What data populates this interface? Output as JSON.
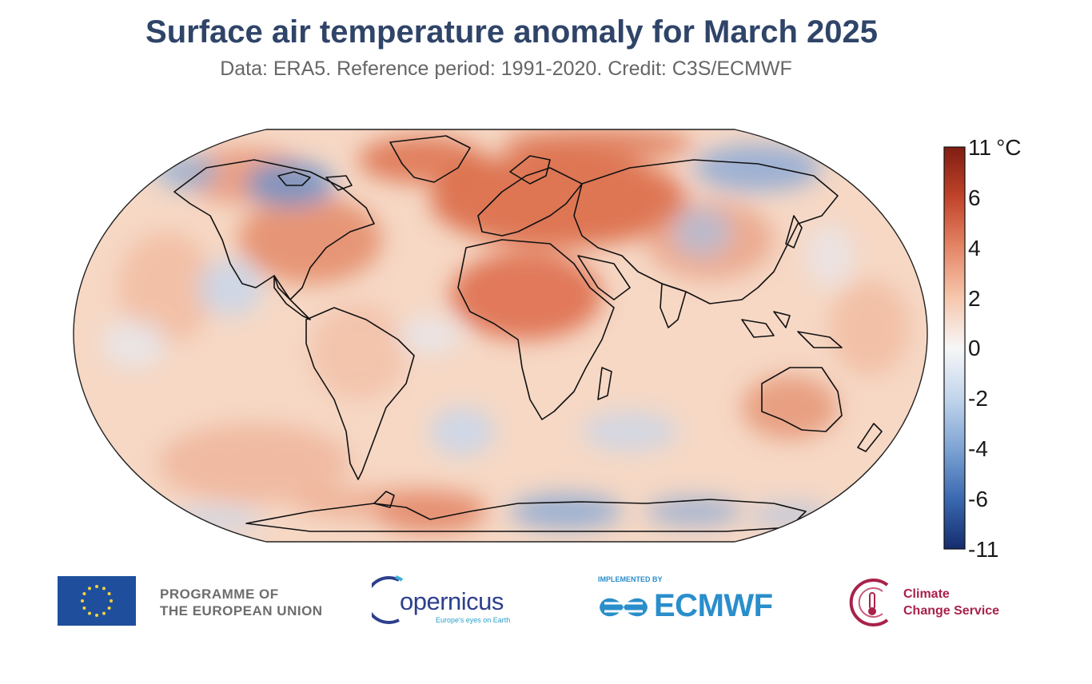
{
  "header": {
    "title": "Surface air temperature anomaly for March 2025",
    "subtitle": "Data: ERA5.  Reference period: 1991-2020.  Credit: C3S/ECMWF"
  },
  "map": {
    "projection": "robinson",
    "region": "global",
    "colors": {
      "ocean_base": "#f6d7c3",
      "warm_strong": "#cf4a26",
      "warm_mid": "#e8876a",
      "warm_light": "#f3c1a8",
      "cool_light": "#cddcef",
      "cool_mid": "#8eaed6",
      "coastline": "#111111"
    }
  },
  "colorbar": {
    "unit": "°C",
    "labels": [
      "11",
      "6",
      "4",
      "2",
      "0",
      "-2",
      "-4",
      "-6",
      "-11"
    ],
    "color_stops": [
      "#7f1d12",
      "#c1442a",
      "#e58667",
      "#f6c7ad",
      "#f7f7f7",
      "#c2d5ec",
      "#7ea4d3",
      "#3a69b0",
      "#142c6e"
    ]
  },
  "logos": {
    "eu_line1": "PROGRAMME OF",
    "eu_line2": "THE EUROPEAN UNION",
    "copernicus_name": "opernicus",
    "copernicus_tagline": "Europe's eyes on Earth",
    "implemented_by": "IMPLEMENTED BY",
    "ecmwf": "ECMWF",
    "c3s_line1": "Climate",
    "c3s_line2": "Change Service"
  }
}
